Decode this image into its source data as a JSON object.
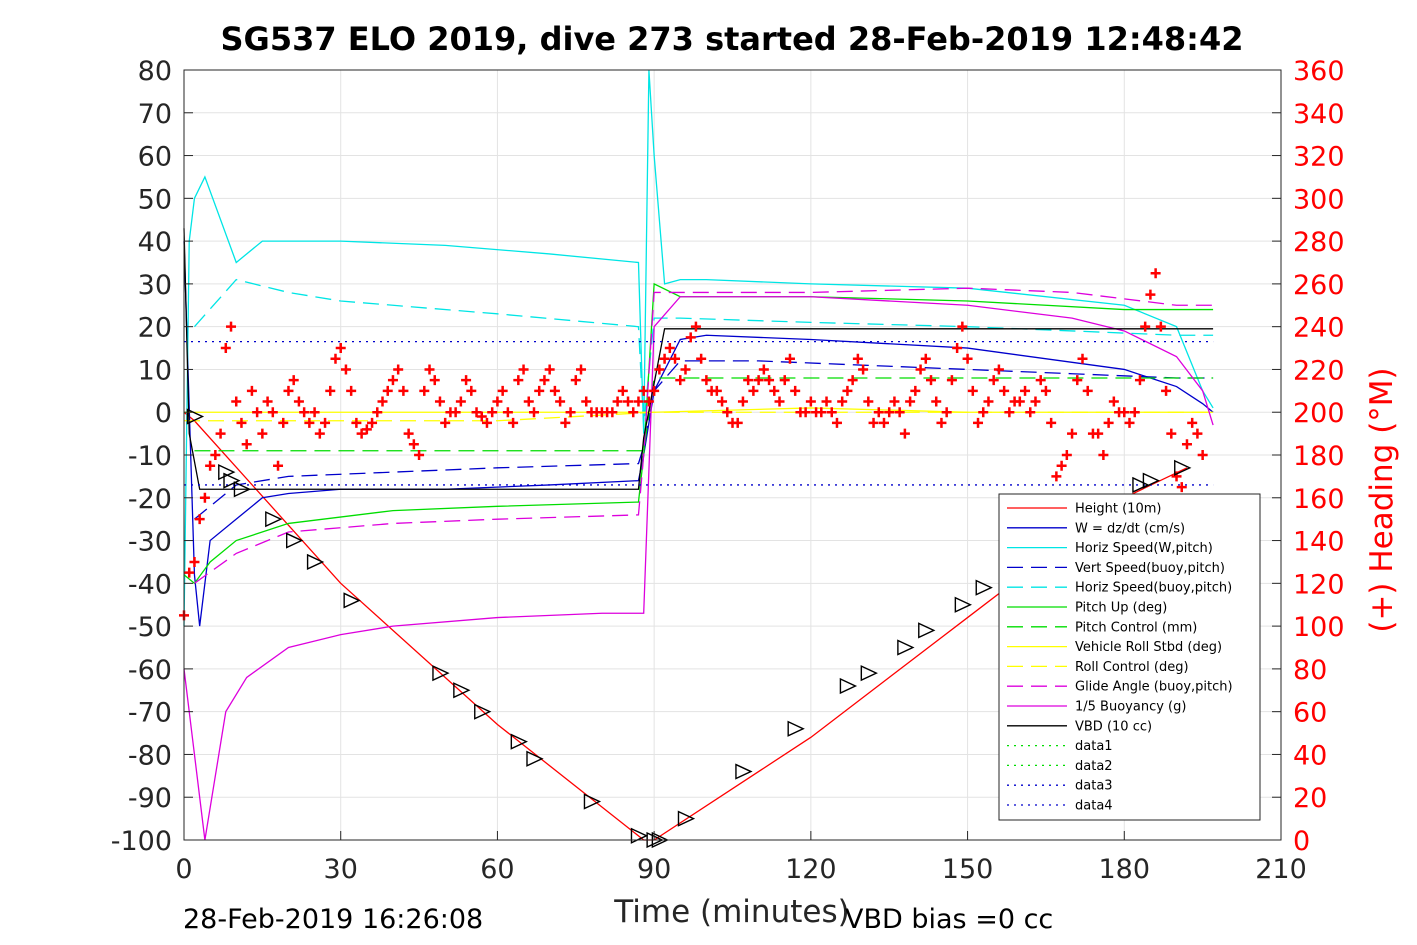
{
  "title": "SG537 ELO 2019, dive 273 started 28-Feb-2019 12:48:42",
  "xlabel": "Time (minutes)",
  "ylabel_right": "(+) Heading (°M)",
  "footer_left": "28-Feb-2019 16:26:08",
  "footer_right": "VBD bias =0 cc",
  "chart_data": {
    "type": "line",
    "title": "SG537 ELO 2019, dive 273 started 28-Feb-2019 12:48:42",
    "xlabel": "Time (minutes)",
    "ylabel": "",
    "ylabel_right": "(+) Heading (°M)",
    "xlim": [
      0,
      210
    ],
    "ylim": [
      -100,
      80
    ],
    "ylim_right": [
      0,
      360
    ],
    "x_ticks": [
      0,
      30,
      60,
      90,
      120,
      150,
      180,
      210
    ],
    "y_ticks": [
      -100,
      -90,
      -80,
      -70,
      -60,
      -50,
      -40,
      -30,
      -20,
      -10,
      0,
      10,
      20,
      30,
      40,
      50,
      60,
      70,
      80
    ],
    "y_ticks_right": [
      0,
      20,
      40,
      60,
      80,
      100,
      120,
      140,
      160,
      180,
      200,
      220,
      240,
      260,
      280,
      300,
      320,
      340,
      360
    ],
    "grid": true,
    "legend_position": "bottom-right",
    "series": [
      {
        "name": "Height (10m)",
        "color": "#ff0000",
        "style": "solid",
        "x": [
          0,
          2,
          30,
          60,
          88,
          90,
          120,
          150,
          180,
          192
        ],
        "y": [
          0,
          -2,
          -40,
          -73,
          -100,
          -100,
          -76,
          -48,
          -20,
          -13
        ]
      },
      {
        "name": "W = dz/dt (cm/s)",
        "color": "#0000cc",
        "style": "solid",
        "x": [
          0,
          2,
          3,
          5,
          10,
          15,
          20,
          30,
          50,
          70,
          87,
          88,
          90,
          95,
          100,
          120,
          150,
          180,
          190,
          195,
          197
        ],
        "y": [
          40,
          -38,
          -50,
          -30,
          -25,
          -20,
          -19,
          -18,
          -18,
          -17,
          -16,
          -10,
          5,
          17,
          18,
          17,
          15,
          10,
          6,
          2,
          0
        ]
      },
      {
        "name": "Horiz Speed(W,pitch)",
        "color": "#00e5e5",
        "style": "solid",
        "x": [
          0,
          1,
          2,
          4,
          10,
          15,
          20,
          30,
          50,
          70,
          87,
          88,
          89,
          90,
          92,
          95,
          100,
          120,
          150,
          180,
          190,
          195,
          197
        ],
        "y": [
          -50,
          40,
          50,
          55,
          35,
          40,
          40,
          40,
          39,
          37,
          35,
          -5,
          80,
          60,
          30,
          31,
          31,
          30,
          29,
          25,
          20,
          5,
          1
        ]
      },
      {
        "name": "Vert Speed(buoy,pitch)",
        "color": "#0000cc",
        "style": "dashed",
        "x": [
          2,
          10,
          20,
          40,
          60,
          87,
          88,
          90,
          95,
          110,
          130,
          150,
          170,
          190,
          197
        ],
        "y": [
          -25,
          -17,
          -15,
          -14,
          -13,
          -12,
          -8,
          5,
          12,
          12,
          11,
          10,
          9,
          8,
          8
        ]
      },
      {
        "name": "Horiz Speed(buoy,pitch)",
        "color": "#00e5e5",
        "style": "dashed",
        "x": [
          2,
          10,
          20,
          30,
          40,
          60,
          87,
          88,
          90,
          95,
          120,
          150,
          170,
          190,
          197
        ],
        "y": [
          20,
          31,
          28,
          26,
          25,
          23,
          20,
          -3,
          22,
          22,
          21,
          20,
          19,
          18,
          18
        ]
      },
      {
        "name": "Pitch Up (deg)",
        "color": "#00dd00",
        "style": "solid",
        "x": [
          0,
          2,
          5,
          10,
          20,
          40,
          60,
          87,
          88,
          90,
          95,
          120,
          150,
          180,
          190,
          197
        ],
        "y": [
          -38,
          -40,
          -35,
          -30,
          -26,
          -23,
          -22,
          -21,
          -10,
          30,
          27,
          27,
          26,
          24,
          24,
          24
        ]
      },
      {
        "name": "Pitch Control (mm)",
        "color": "#00dd00",
        "style": "dashed",
        "x": [
          2,
          10,
          30,
          60,
          87,
          88,
          90,
          120,
          150,
          180,
          197
        ],
        "y": [
          -9,
          -9,
          -9,
          -9,
          -9,
          -9,
          8,
          8,
          8,
          8,
          8
        ]
      },
      {
        "name": "Vehicle Roll Stbd (deg)",
        "color": "#ffff00",
        "style": "solid",
        "x": [
          0,
          10,
          30,
          60,
          87,
          90,
          120,
          150,
          180,
          197
        ],
        "y": [
          0,
          0,
          0,
          0,
          0,
          0,
          1,
          0,
          0,
          0
        ]
      },
      {
        "name": "Roll Control (deg)",
        "color": "#ffff00",
        "style": "dashed",
        "x": [
          0,
          30,
          60,
          90,
          120,
          150,
          180,
          197
        ],
        "y": [
          -2,
          -2,
          -2,
          0,
          0,
          0,
          0,
          0
        ]
      },
      {
        "name": "Glide Angle (buoy,pitch)",
        "color": "#dd00dd",
        "style": "dashed",
        "x": [
          2,
          10,
          20,
          40,
          60,
          87,
          88,
          90,
          95,
          120,
          150,
          170,
          190,
          197
        ],
        "y": [
          -40,
          -33,
          -28,
          -26,
          -25,
          -24,
          -10,
          28,
          28,
          28,
          29,
          28,
          25,
          25
        ]
      },
      {
        "name": "1/5 Buoyancy (g)",
        "color": "#dd00dd",
        "style": "solid",
        "x": [
          0,
          2,
          4,
          8,
          12,
          20,
          30,
          40,
          60,
          80,
          88,
          90,
          95,
          120,
          150,
          170,
          180,
          190,
          195,
          197
        ],
        "y": [
          -60,
          -80,
          -100,
          -70,
          -62,
          -55,
          -52,
          -50,
          -48,
          -47,
          -47,
          20,
          27,
          27,
          25,
          22,
          19,
          13,
          5,
          -3
        ]
      },
      {
        "name": "VBD (10 cc)",
        "color": "#000000",
        "style": "solid",
        "x": [
          0,
          1,
          3,
          87,
          88,
          92,
          197
        ],
        "y": [
          43,
          -5,
          -18,
          -18,
          -6,
          19.5,
          19.5
        ]
      },
      {
        "name": "data1",
        "color": "#00dd00",
        "style": "dotted",
        "x": [],
        "y": []
      },
      {
        "name": "data2",
        "color": "#00dd00",
        "style": "dotted",
        "x": [],
        "y": []
      },
      {
        "name": "data3",
        "color": "#0000cc",
        "style": "dotted",
        "x": [
          0,
          197
        ],
        "y": [
          16.5,
          16.5
        ]
      },
      {
        "name": "data4",
        "color": "#0000cc",
        "style": "dotted",
        "x": [
          0,
          197
        ],
        "y": [
          -17,
          -17
        ]
      }
    ],
    "heading_series": {
      "name": "(+) Heading",
      "axis": "right",
      "color": "#ff0000",
      "marker": "+",
      "x": [
        0,
        1,
        2,
        3,
        4,
        5,
        6,
        7,
        8,
        9,
        10,
        11,
        12,
        13,
        14,
        15,
        16,
        17,
        18,
        19,
        20,
        21,
        22,
        23,
        24,
        25,
        26,
        27,
        28,
        29,
        30,
        31,
        32,
        33,
        34,
        35,
        36,
        37,
        38,
        39,
        40,
        41,
        42,
        43,
        44,
        45,
        46,
        47,
        48,
        49,
        50,
        51,
        52,
        53,
        54,
        55,
        56,
        57,
        58,
        59,
        60,
        61,
        62,
        63,
        64,
        65,
        66,
        67,
        68,
        69,
        70,
        71,
        72,
        73,
        74,
        75,
        76,
        77,
        78,
        79,
        80,
        81,
        82,
        83,
        84,
        85,
        86,
        87,
        88,
        89,
        90,
        91,
        92,
        93,
        94,
        95,
        96,
        97,
        98,
        99,
        100,
        101,
        102,
        103,
        104,
        105,
        106,
        107,
        108,
        109,
        110,
        111,
        112,
        113,
        114,
        115,
        116,
        117,
        118,
        119,
        120,
        121,
        122,
        123,
        124,
        125,
        126,
        127,
        128,
        129,
        130,
        131,
        132,
        133,
        134,
        135,
        136,
        137,
        138,
        139,
        140,
        141,
        142,
        143,
        144,
        145,
        146,
        147,
        148,
        149,
        150,
        151,
        152,
        153,
        154,
        155,
        156,
        157,
        158,
        159,
        160,
        161,
        162,
        163,
        164,
        165,
        166,
        167,
        168,
        169,
        170,
        171,
        172,
        173,
        174,
        175,
        176,
        177,
        178,
        179,
        180,
        181,
        182,
        183,
        184,
        185,
        186,
        187,
        188,
        189,
        190,
        191,
        192,
        193,
        194,
        195
      ],
      "y": [
        105,
        125,
        130,
        150,
        160,
        175,
        180,
        190,
        230,
        240,
        205,
        195,
        185,
        210,
        200,
        190,
        205,
        200,
        175,
        195,
        210,
        215,
        205,
        200,
        195,
        200,
        190,
        195,
        210,
        225,
        230,
        220,
        210,
        195,
        190,
        192,
        195,
        200,
        205,
        210,
        215,
        220,
        210,
        190,
        185,
        180,
        210,
        220,
        215,
        205,
        195,
        200,
        200,
        205,
        215,
        210,
        200,
        198,
        195,
        200,
        205,
        210,
        200,
        195,
        215,
        220,
        205,
        200,
        210,
        215,
        220,
        210,
        205,
        195,
        200,
        215,
        220,
        205,
        200,
        200,
        200,
        200,
        200,
        205,
        210,
        205,
        200,
        205,
        210,
        205,
        210,
        220,
        225,
        230,
        225,
        215,
        220,
        235,
        240,
        225,
        215,
        210,
        210,
        205,
        200,
        195,
        195,
        205,
        215,
        210,
        215,
        220,
        215,
        210,
        205,
        215,
        225,
        210,
        200,
        200,
        205,
        200,
        200,
        205,
        200,
        195,
        205,
        210,
        215,
        225,
        220,
        205,
        195,
        200,
        195,
        200,
        205,
        200,
        190,
        205,
        210,
        220,
        225,
        215,
        205,
        195,
        200,
        215,
        230,
        240,
        225,
        210,
        195,
        200,
        205,
        215,
        220,
        210,
        200,
        205,
        205,
        210,
        200,
        205,
        215,
        210,
        195,
        170,
        175,
        180,
        190,
        215,
        225,
        210,
        190,
        190,
        180,
        195,
        205,
        200,
        200,
        195,
        200,
        215,
        240,
        255,
        265,
        240,
        210,
        190,
        170,
        165,
        185,
        195,
        190,
        180
      ]
    },
    "markers": {
      "name": "triangles",
      "x": [
        2,
        8,
        9,
        11,
        17,
        21,
        25,
        32,
        49,
        53,
        57,
        64,
        67,
        78,
        87,
        90,
        91,
        96,
        107,
        117,
        127,
        131,
        138,
        142,
        149,
        153,
        183,
        185,
        191
      ],
      "y": [
        -1,
        -14,
        -16,
        -18,
        -25,
        -30,
        -35,
        -44,
        -61,
        -65,
        -70,
        -77,
        -81,
        -91,
        -99,
        -100,
        -100,
        -95,
        -84,
        -74,
        -64,
        -61,
        -55,
        -51,
        -45,
        -41,
        -17,
        -16,
        -13
      ]
    }
  }
}
